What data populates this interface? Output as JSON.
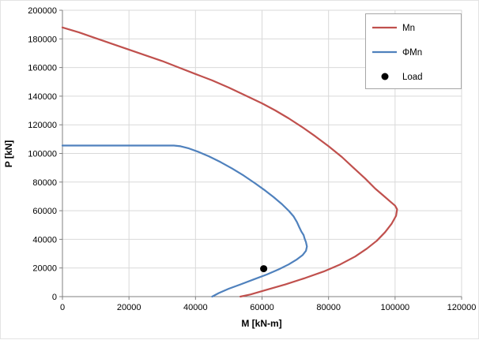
{
  "chart_data": {
    "type": "line",
    "title": "",
    "xlabel": "M [kN-m]",
    "ylabel": "P [kN]",
    "xlim": [
      0,
      120000
    ],
    "ylim": [
      0,
      200000
    ],
    "xtick_step": 20000,
    "ytick_step": 20000,
    "grid": true,
    "legend_position": "top-right",
    "colors": {
      "gridline": "#D9D9D9",
      "axis_line": "#808080",
      "legend_border": "#A6A6A6",
      "plot_background": "#FFFFFF"
    },
    "series": [
      {
        "name": "Mn",
        "type": "line",
        "color": "#C0504D",
        "points": [
          [
            0,
            188000
          ],
          [
            5000,
            184500
          ],
          [
            10000,
            180500
          ],
          [
            15000,
            176500
          ],
          [
            20000,
            172500
          ],
          [
            25000,
            168500
          ],
          [
            30000,
            164500
          ],
          [
            35000,
            160000
          ],
          [
            40000,
            155500
          ],
          [
            45000,
            151000
          ],
          [
            50000,
            146000
          ],
          [
            55000,
            140500
          ],
          [
            60000,
            135000
          ],
          [
            64000,
            130000
          ],
          [
            68000,
            124500
          ],
          [
            72000,
            118500
          ],
          [
            76000,
            112000
          ],
          [
            80000,
            105000
          ],
          [
            84000,
            97500
          ],
          [
            87500,
            90000
          ],
          [
            91000,
            82500
          ],
          [
            94000,
            75500
          ],
          [
            96500,
            70500
          ],
          [
            98500,
            66500
          ],
          [
            100000,
            63500
          ],
          [
            100600,
            61000
          ],
          [
            100300,
            56500
          ],
          [
            99000,
            51000
          ],
          [
            97000,
            45000
          ],
          [
            94500,
            39000
          ],
          [
            91500,
            33500
          ],
          [
            88000,
            28000
          ],
          [
            83500,
            22500
          ],
          [
            78500,
            17500
          ],
          [
            73000,
            13000
          ],
          [
            67000,
            8500
          ],
          [
            61000,
            4500
          ],
          [
            56500,
            1500
          ],
          [
            53500,
            0
          ]
        ]
      },
      {
        "name": "ΦMn",
        "type": "line",
        "color": "#4F81BD",
        "points": [
          [
            0,
            105500
          ],
          [
            33500,
            105500
          ],
          [
            35500,
            105000
          ],
          [
            38000,
            103500
          ],
          [
            41000,
            101000
          ],
          [
            44000,
            98000
          ],
          [
            47500,
            94000
          ],
          [
            51000,
            89500
          ],
          [
            54500,
            84500
          ],
          [
            58000,
            79000
          ],
          [
            61000,
            74000
          ],
          [
            63500,
            69500
          ],
          [
            66000,
            64500
          ],
          [
            68000,
            60000
          ],
          [
            69500,
            56000
          ],
          [
            70500,
            52000
          ],
          [
            71200,
            48500
          ],
          [
            71800,
            45500
          ],
          [
            72500,
            43000
          ],
          [
            72800,
            40500
          ],
          [
            73200,
            38000
          ],
          [
            73500,
            35000
          ],
          [
            73200,
            32000
          ],
          [
            72200,
            29000
          ],
          [
            70500,
            26000
          ],
          [
            68000,
            22500
          ],
          [
            65000,
            19000
          ],
          [
            61500,
            15500
          ],
          [
            57500,
            12000
          ],
          [
            53500,
            8500
          ],
          [
            50000,
            5500
          ],
          [
            47000,
            2500
          ],
          [
            45000,
            0
          ]
        ]
      },
      {
        "name": "Load",
        "type": "scatter",
        "color": "#000000",
        "points": [
          [
            60500,
            19500
          ]
        ]
      }
    ]
  }
}
